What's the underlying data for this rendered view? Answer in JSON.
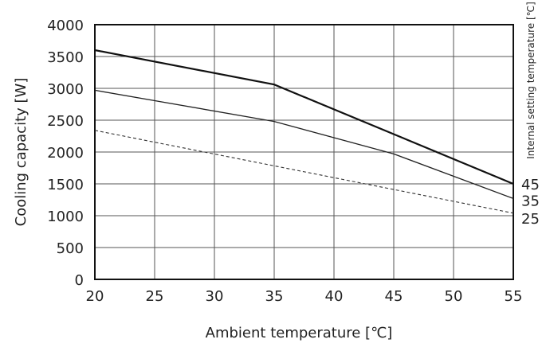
{
  "chart_data": {
    "type": "line",
    "title": "",
    "xlabel": "Ambient temperature [℃]",
    "ylabel": "Cooling capacity [W]",
    "right_label": "Internal setting temperature [℃]",
    "xlim": [
      20,
      55
    ],
    "ylim": [
      0,
      4000
    ],
    "x_ticks": [
      20,
      25,
      30,
      35,
      40,
      45,
      50,
      55
    ],
    "y_ticks": [
      0,
      500,
      1000,
      1500,
      2000,
      2500,
      3000,
      3500,
      4000
    ],
    "grid": true,
    "series": [
      {
        "name": "45",
        "style": "solid-thick",
        "x": [
          20,
          35,
          55
        ],
        "values": [
          3600,
          3060,
          1500
        ]
      },
      {
        "name": "35",
        "style": "solid",
        "x": [
          20,
          35,
          45,
          55
        ],
        "values": [
          2970,
          2480,
          1970,
          1270
        ]
      },
      {
        "name": "25",
        "style": "dashed",
        "x": [
          20,
          55
        ],
        "values": [
          2340,
          1040
        ]
      }
    ]
  }
}
